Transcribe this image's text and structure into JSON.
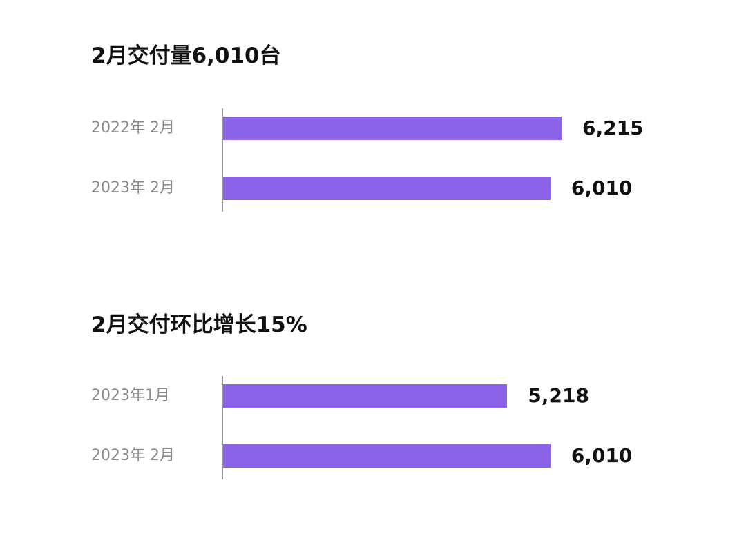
{
  "chart_data": [
    {
      "type": "bar",
      "orientation": "horizontal",
      "title": "2月交付量6,010台",
      "categories": [
        "2022年 2月",
        "2023年 2月"
      ],
      "values": [
        6215,
        6010
      ],
      "value_labels": [
        "6,215",
        "6,010"
      ],
      "bar_color": "#8A63E8",
      "grid": false,
      "xlim": [
        0,
        6215
      ]
    },
    {
      "type": "bar",
      "orientation": "horizontal",
      "title": "2月交付环比增长15%",
      "categories": [
        "2023年1月",
        "2023年 2月"
      ],
      "values": [
        5218,
        6010
      ],
      "value_labels": [
        "5,218",
        "6,010"
      ],
      "bar_color": "#8A63E8",
      "grid": false,
      "xlim": [
        0,
        6215
      ]
    }
  ]
}
